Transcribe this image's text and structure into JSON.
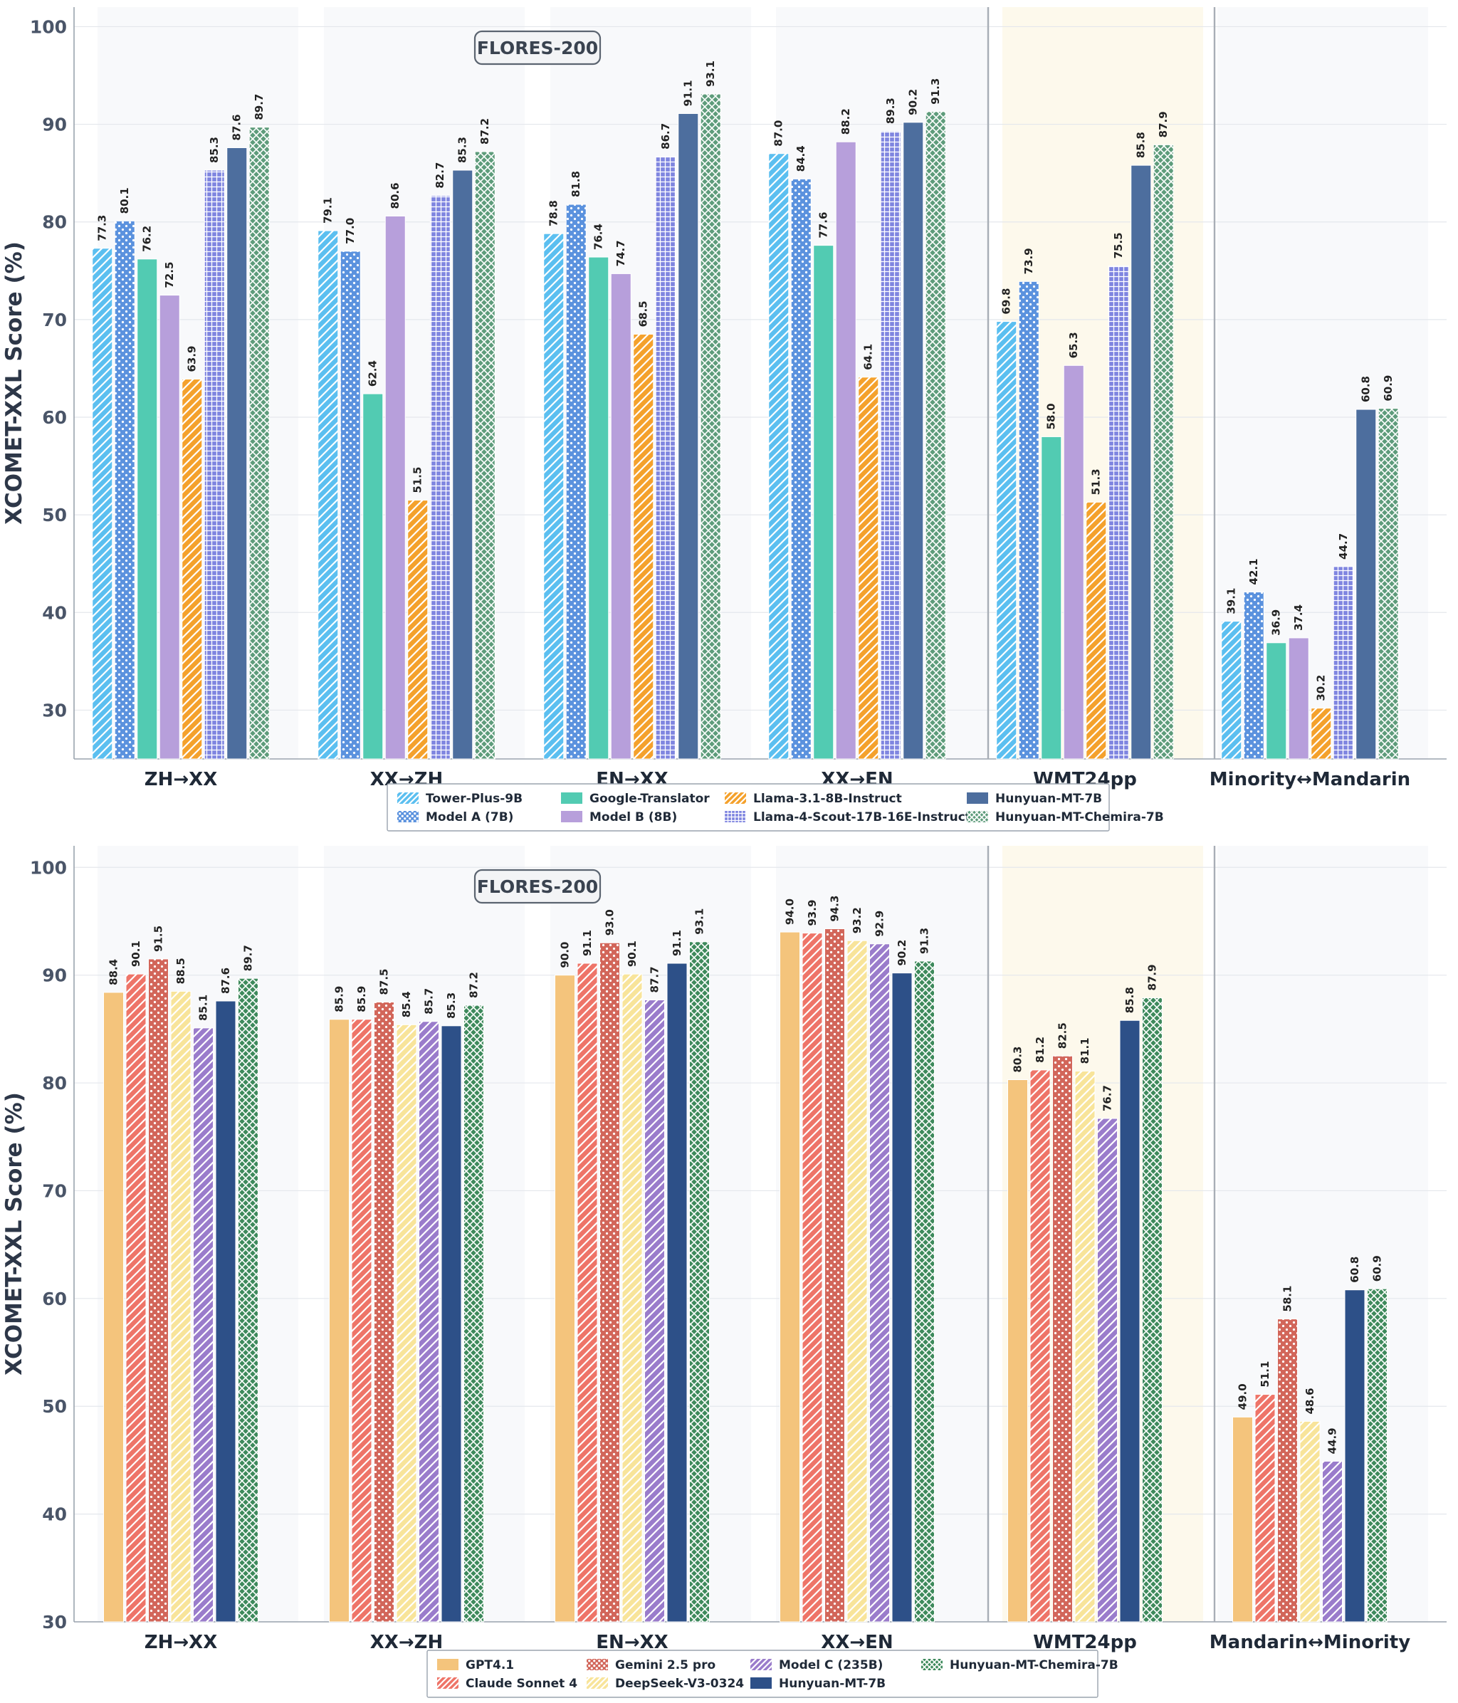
{
  "chart_data": [
    {
      "type": "bar",
      "ylabel": "XCOMET-XXL Score (%)",
      "ylim": [
        25,
        102
      ],
      "yticks": [
        30,
        40,
        50,
        60,
        70,
        80,
        90,
        100
      ],
      "annotation": "FLORES-200",
      "categories": [
        "ZH→XX",
        "XX→ZH",
        "EN→XX",
        "XX→EN",
        "WMT24pp",
        "Minority↔Mandarin"
      ],
      "highlight_category": "WMT24pp",
      "legend_position": "bottom-center",
      "series": [
        {
          "name": "Tower-Plus-9B",
          "color": "#5BBFF0",
          "pattern": "diag",
          "values": [
            77.3,
            79.1,
            78.8,
            87.0,
            69.8,
            39.1
          ]
        },
        {
          "name": "Model A (7B)",
          "color": "#5B92DE",
          "pattern": "dots",
          "values": [
            80.1,
            77.0,
            81.8,
            84.4,
            73.9,
            42.1
          ]
        },
        {
          "name": "Google-Translator",
          "color": "#52CBB2",
          "pattern": "none",
          "values": [
            76.2,
            62.4,
            76.4,
            77.6,
            58.0,
            36.9
          ]
        },
        {
          "name": "Model B (8B)",
          "color": "#B79FDB",
          "pattern": "none",
          "values": [
            72.5,
            80.6,
            74.7,
            88.2,
            65.3,
            37.4
          ]
        },
        {
          "name": "Llama-3.1-8B-Instruct",
          "color": "#F4A12C",
          "pattern": "diag",
          "values": [
            63.9,
            51.5,
            68.5,
            64.1,
            51.3,
            30.2
          ]
        },
        {
          "name": "Llama-4-Scout-17B-16E-Instruct",
          "color": "#7F85E0",
          "pattern": "grid",
          "values": [
            85.3,
            82.7,
            86.7,
            89.3,
            75.5,
            44.7
          ]
        },
        {
          "name": "Hunyuan-MT-7B",
          "color": "#4D6E9E",
          "pattern": "none",
          "values": [
            87.6,
            85.3,
            91.1,
            90.2,
            85.8,
            60.8
          ]
        },
        {
          "name": "Hunyuan-MT-Chemira-7B",
          "color": "#5E9C7B",
          "pattern": "cross",
          "values": [
            89.7,
            87.2,
            93.1,
            91.3,
            87.9,
            60.9
          ]
        }
      ]
    },
    {
      "type": "bar",
      "ylabel": "XCOMET-XXL Score (%)",
      "ylim": [
        30,
        102
      ],
      "yticks": [
        30,
        40,
        50,
        60,
        70,
        80,
        90,
        100
      ],
      "annotation": "FLORES-200",
      "categories": [
        "ZH→XX",
        "XX→ZH",
        "EN→XX",
        "XX→EN",
        "WMT24pp",
        "Mandarin↔Minority"
      ],
      "highlight_category": "WMT24pp",
      "legend_position": "bottom-center",
      "series": [
        {
          "name": "GPT4.1",
          "color": "#F4C47C",
          "pattern": "none",
          "values": [
            88.4,
            85.9,
            90.0,
            94.0,
            80.3,
            49.0
          ]
        },
        {
          "name": "Claude Sonnet 4",
          "color": "#EE7468",
          "pattern": "diag",
          "values": [
            90.1,
            85.9,
            91.1,
            93.9,
            81.2,
            51.1
          ]
        },
        {
          "name": "Gemini 2.5 pro",
          "color": "#D2665A",
          "pattern": "dots",
          "values": [
            91.5,
            87.5,
            93.0,
            94.3,
            82.5,
            58.1
          ]
        },
        {
          "name": "DeepSeek-V3-0324",
          "color": "#F8E49A",
          "pattern": "diag",
          "values": [
            88.5,
            85.4,
            90.1,
            93.2,
            81.1,
            48.6
          ]
        },
        {
          "name": "Model C (235B)",
          "color": "#9A7CCB",
          "pattern": "diag",
          "values": [
            85.1,
            85.7,
            87.7,
            92.9,
            76.7,
            44.9
          ]
        },
        {
          "name": "Hunyuan-MT-7B",
          "color": "#2D5088",
          "pattern": "none",
          "values": [
            87.6,
            85.3,
            91.1,
            90.2,
            85.8,
            60.8
          ]
        },
        {
          "name": "Hunyuan-MT-Chemira-7B",
          "color": "#3E8A5C",
          "pattern": "cross",
          "values": [
            89.7,
            87.2,
            93.1,
            91.3,
            87.9,
            60.9
          ]
        }
      ]
    }
  ]
}
